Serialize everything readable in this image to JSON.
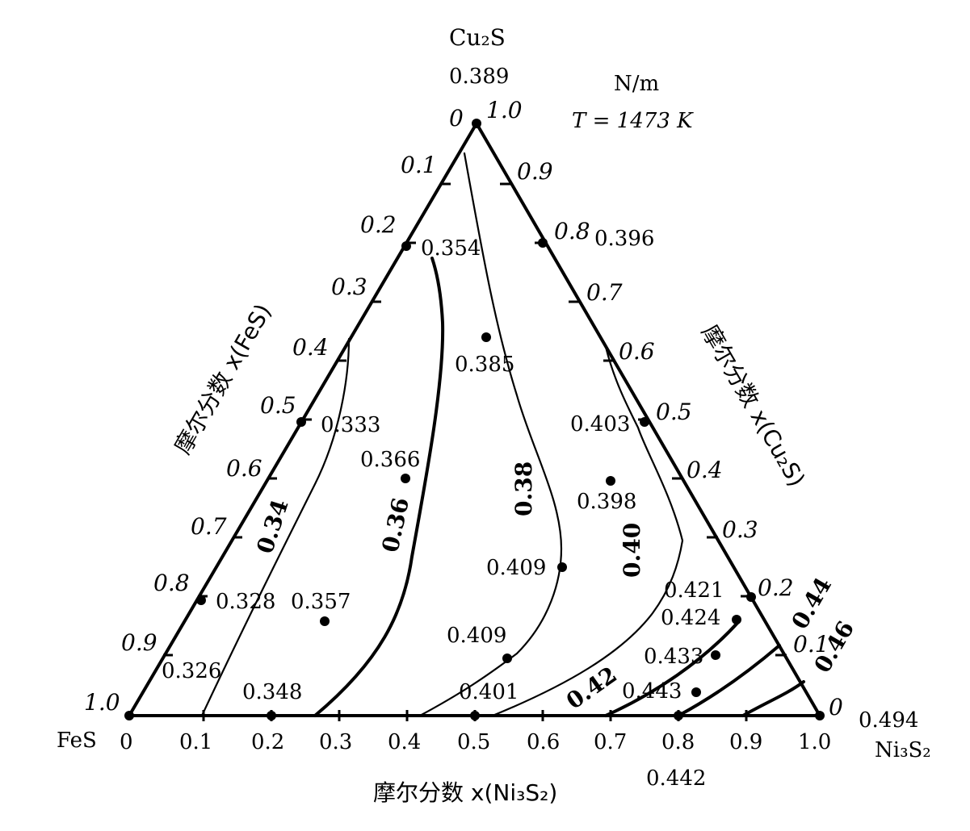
{
  "components": {
    "top": "Cu₂S",
    "left": "FeS",
    "right": "Ni₃S₂"
  },
  "units": "N/m",
  "temperature": "T = 1473 K",
  "axis_titles": {
    "left": "摩尔分数 x(FeS)",
    "right": "摩尔分数 x(Cu₂S)",
    "bottom": "摩尔分数 x(Ni₃S₂)"
  },
  "bottom_ticks": [
    "0",
    "0.1",
    "0.2",
    "0.3",
    "0.4",
    "0.5",
    "0.6",
    "0.7",
    "0.8",
    "0.9",
    "1.0"
  ],
  "left_ticks": [
    "0",
    "0.1",
    "0.2",
    "0.3",
    "0.4",
    "0.5",
    "0.6",
    "0.7",
    "0.8",
    "0.9",
    "1.0"
  ],
  "right_ticks": [
    "1.0",
    "0.9",
    "0.8",
    "0.7",
    "0.6",
    "0.5",
    "0.4",
    "0.3",
    "0.2",
    "0.1",
    "0"
  ],
  "vertex_values": {
    "top": "0.389",
    "right": "0.494",
    "bottom_extra": "0.442"
  },
  "points": [
    {
      "label": "0.354"
    },
    {
      "label": "0.396"
    },
    {
      "label": "0.385"
    },
    {
      "label": "0.333"
    },
    {
      "label": "0.403"
    },
    {
      "label": "0.366"
    },
    {
      "label": "0.398"
    },
    {
      "label": "0.409"
    },
    {
      "label": "0.328"
    },
    {
      "label": "0.357"
    },
    {
      "label": "0.421"
    },
    {
      "label": "0.424"
    },
    {
      "label": "0.409"
    },
    {
      "label": "0.433"
    },
    {
      "label": "0.326"
    },
    {
      "label": "0.348"
    },
    {
      "label": "0.401"
    },
    {
      "label": "0.443"
    }
  ],
  "isolines": [
    "0.34",
    "0.36",
    "0.38",
    "0.40",
    "0.42",
    "0.44",
    "0.46"
  ]
}
